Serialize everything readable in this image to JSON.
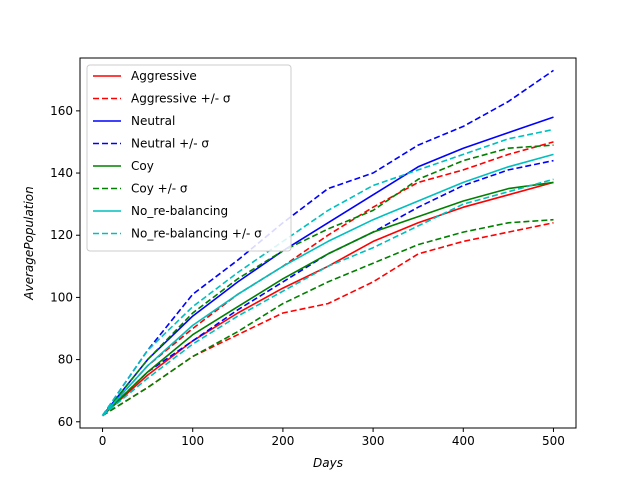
{
  "chart_data": {
    "type": "line",
    "title": "",
    "xlabel": "Days",
    "ylabel": "AveragePopulation",
    "xlim": [
      -25,
      525
    ],
    "ylim": [
      58,
      177
    ],
    "xticks": [
      0,
      100,
      200,
      300,
      400,
      500
    ],
    "yticks": [
      60,
      80,
      100,
      120,
      140,
      160
    ],
    "grid": false,
    "legend_position": "top-left",
    "series": [
      {
        "name": "Aggressive",
        "color": "#ff0000",
        "style": "solid",
        "x": [
          0,
          50,
          100,
          150,
          200,
          250,
          300,
          350,
          400,
          450,
          500
        ],
        "y": [
          62,
          75,
          86,
          95,
          103,
          110,
          118,
          124,
          129,
          133,
          137
        ]
      },
      {
        "name": "Aggressive +/- σ",
        "color": "#ff0000",
        "style": "dashed",
        "x": [
          0,
          50,
          100,
          150,
          200,
          250,
          300,
          350,
          400,
          450,
          500
        ],
        "y": [
          62,
          71,
          81,
          88,
          95,
          98,
          105,
          114,
          118,
          121,
          124
        ]
      },
      {
        "name": "",
        "color": "#ff0000",
        "style": "dashed",
        "x": [
          0,
          50,
          100,
          150,
          200,
          250,
          300,
          350,
          400,
          450,
          500
        ],
        "y": [
          62,
          78,
          90,
          101,
          110,
          120,
          129,
          137,
          141,
          146,
          150
        ]
      },
      {
        "name": "Neutral",
        "color": "#0000ff",
        "style": "solid",
        "x": [
          0,
          50,
          100,
          150,
          200,
          250,
          300,
          350,
          400,
          450,
          500
        ],
        "y": [
          62,
          80,
          94,
          105,
          115,
          124,
          133,
          142,
          148,
          153,
          158
        ]
      },
      {
        "name": "Neutral +/- σ",
        "color": "#0000ff",
        "style": "dashed",
        "x": [
          0,
          50,
          100,
          150,
          200,
          250,
          300,
          350,
          400,
          450,
          500
        ],
        "y": [
          62,
          83,
          101,
          112,
          124,
          135,
          140,
          149,
          155,
          163,
          173
        ]
      },
      {
        "name": "",
        "color": "#0000ff",
        "style": "dashed",
        "x": [
          0,
          50,
          100,
          150,
          200,
          250,
          300,
          350,
          400,
          450,
          500
        ],
        "y": [
          62,
          76,
          86,
          96,
          105,
          114,
          121,
          129,
          136,
          141,
          144
        ]
      },
      {
        "name": "Coy",
        "color": "#008000",
        "style": "solid",
        "x": [
          0,
          50,
          100,
          150,
          200,
          250,
          300,
          350,
          400,
          450,
          500
        ],
        "y": [
          62,
          76,
          88,
          97,
          106,
          114,
          121,
          126,
          131,
          135,
          137
        ]
      },
      {
        "name": "Coy +/- σ",
        "color": "#008000",
        "style": "dashed",
        "x": [
          0,
          50,
          100,
          150,
          200,
          250,
          300,
          350,
          400,
          450,
          500
        ],
        "y": [
          62,
          71,
          81,
          89,
          98,
          105,
          111,
          117,
          121,
          124,
          125
        ]
      },
      {
        "name": "",
        "color": "#008000",
        "style": "dashed",
        "x": [
          0,
          50,
          100,
          150,
          200,
          250,
          300,
          350,
          400,
          450,
          500
        ],
        "y": [
          62,
          80,
          95,
          106,
          115,
          122,
          128,
          138,
          144,
          148,
          149
        ]
      },
      {
        "name": "No_re-balancing",
        "color": "#00bfbf",
        "style": "solid",
        "x": [
          0,
          50,
          100,
          150,
          200,
          250,
          300,
          350,
          400,
          450,
          500
        ],
        "y": [
          62,
          78,
          91,
          101,
          110,
          118,
          125,
          131,
          137,
          142,
          146
        ]
      },
      {
        "name": "No_re-balancing +/- σ",
        "color": "#00bfbf",
        "style": "dashed",
        "x": [
          0,
          50,
          100,
          150,
          200,
          250,
          300,
          350,
          400,
          450,
          500
        ],
        "y": [
          62,
          83,
          97,
          108,
          118,
          128,
          136,
          141,
          146,
          151,
          154
        ]
      },
      {
        "name": "",
        "color": "#00bfbf",
        "style": "dashed",
        "x": [
          0,
          50,
          100,
          150,
          200,
          250,
          300,
          350,
          400,
          450,
          500
        ],
        "y": [
          62,
          74,
          85,
          94,
          102,
          110,
          116,
          123,
          130,
          134,
          138
        ]
      }
    ]
  }
}
